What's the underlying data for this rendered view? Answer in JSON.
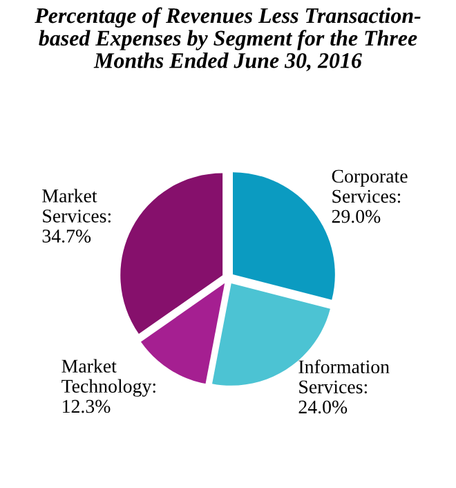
{
  "chart_data": {
    "type": "pie",
    "title": "Percentage of Revenues Less Transaction-\nbased Expenses by Segment for the Three\nMonths Ended June 30, 2016",
    "categories": [
      "Corporate Services",
      "Information Services",
      "Market Technology",
      "Market Services"
    ],
    "values": [
      29.0,
      24.0,
      12.3,
      34.7
    ],
    "value_labels": [
      ":\n29.0%",
      ":\n24.0%",
      ":\n12.3%",
      ":\n34.7%"
    ],
    "colors": [
      "#0b9bc1",
      "#4cc3d3",
      "#a51f91",
      "#86106c"
    ],
    "legend": false
  }
}
